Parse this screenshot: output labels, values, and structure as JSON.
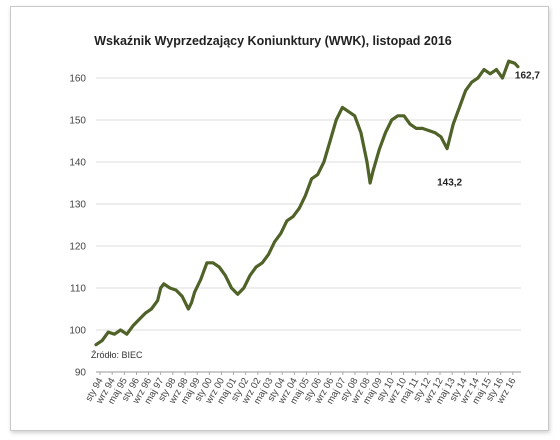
{
  "chart_data": {
    "type": "line",
    "title": "Wskaźnik Wyprzedzający Koniunktury (WWK),  listopad 2016",
    "xlabel": "",
    "ylabel": "",
    "ylim": [
      90,
      165
    ],
    "yticks": [
      90,
      100,
      110,
      120,
      130,
      140,
      150,
      160
    ],
    "grid": true,
    "legend": "none",
    "line_color": "#4f6228",
    "grid_color": "#d0d0d0",
    "source_note": "Źródło: BIEC",
    "xtick_labels": [
      "sty 94",
      "wrz 94",
      "maj 95",
      "sty 96",
      "wrz 96",
      "maj 97",
      "sty 98",
      "wrz 98",
      "maj 99",
      "sty 00",
      "wrz 00",
      "maj 01",
      "sty 02",
      "wrz 02",
      "maj 03",
      "sty 04",
      "wrz 04",
      "maj 05",
      "sty 06",
      "wrz 06",
      "maj 07",
      "sty 08",
      "wrz 08",
      "maj 09",
      "sty 10",
      "wrz 10",
      "maj 11",
      "sty 12",
      "wrz 12",
      "maj 13",
      "sty 14",
      "wrz 14",
      "maj 15",
      "sty 16",
      "wrz 16"
    ],
    "annotations": [
      {
        "label": "162,7",
        "x": "2016-11",
        "y": 162.7
      },
      {
        "label": "143,2",
        "x": "2013-01",
        "y": 143.2
      }
    ],
    "series": [
      {
        "x": [
          "1994-01",
          "1994-05",
          "1994-09",
          "1995-01",
          "1995-05",
          "1995-09",
          "1996-01",
          "1996-05",
          "1996-09",
          "1997-01",
          "1997-05",
          "1997-07",
          "1997-09",
          "1998-01",
          "1998-05",
          "1998-09",
          "1999-01",
          "1999-03",
          "1999-05",
          "1999-09",
          "2000-01",
          "2000-05",
          "2000-09",
          "2001-01",
          "2001-05",
          "2001-09",
          "2002-01",
          "2002-05",
          "2002-09",
          "2003-01",
          "2003-05",
          "2003-09",
          "2004-01",
          "2004-05",
          "2004-09",
          "2005-01",
          "2005-05",
          "2005-09",
          "2006-01",
          "2006-05",
          "2006-09",
          "2007-01",
          "2007-05",
          "2007-09",
          "2008-01",
          "2008-05",
          "2008-09",
          "2008-11",
          "2009-01",
          "2009-05",
          "2009-09",
          "2010-01",
          "2010-05",
          "2010-09",
          "2011-01",
          "2011-05",
          "2011-09",
          "2012-01",
          "2012-05",
          "2012-09",
          "2013-01",
          "2013-05",
          "2013-09",
          "2014-01",
          "2014-05",
          "2014-09",
          "2015-01",
          "2015-05",
          "2015-09",
          "2016-01",
          "2016-05",
          "2016-09",
          "2016-11"
        ],
        "values": [
          96.5,
          97.5,
          99.5,
          99,
          100,
          99,
          101,
          102.5,
          104,
          105,
          107,
          110,
          111,
          110,
          109.5,
          108,
          105,
          106.5,
          109,
          112,
          116,
          116,
          115,
          113,
          110,
          108.5,
          110,
          113,
          115,
          116,
          118,
          121,
          123,
          126,
          127,
          129,
          132,
          136,
          137,
          140,
          145,
          150,
          153,
          152,
          151,
          147,
          140,
          135,
          138,
          143,
          147,
          150,
          151,
          151,
          149,
          148,
          148,
          147.5,
          147,
          146,
          143.2,
          149,
          153,
          157,
          159,
          160,
          162,
          161,
          162,
          160,
          164,
          163.5,
          162.7
        ]
      }
    ]
  }
}
